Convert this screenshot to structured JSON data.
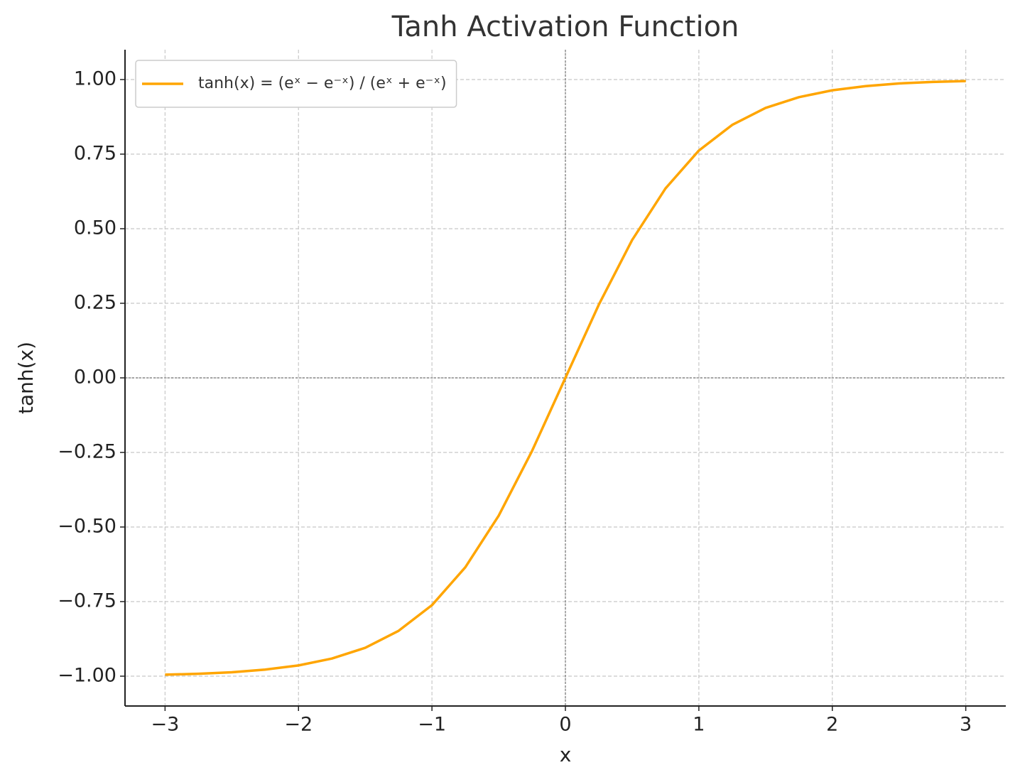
{
  "chart_data": {
    "type": "line",
    "title": "Tanh Activation Function",
    "x_label": "x",
    "y_label": "tanh(x)",
    "x": [
      -3,
      -2.75,
      -2.5,
      -2.25,
      -2,
      -1.75,
      -1.5,
      -1.25,
      -1,
      -0.75,
      -0.5,
      -0.25,
      0,
      0.25,
      0.5,
      0.75,
      1,
      1.25,
      1.5,
      1.75,
      2,
      2.25,
      2.5,
      2.75,
      3
    ],
    "series": [
      {
        "name": "tanh(x) = (eˣ − e⁻ˣ) / (eˣ + e⁻ˣ)",
        "color": "#ffa500",
        "values": [
          -0.995,
          -0.992,
          -0.987,
          -0.978,
          -0.964,
          -0.941,
          -0.905,
          -0.848,
          -0.762,
          -0.635,
          -0.462,
          -0.245,
          0,
          0.245,
          0.462,
          0.635,
          0.762,
          0.848,
          0.905,
          0.941,
          0.964,
          0.978,
          0.987,
          0.992,
          0.995
        ]
      }
    ],
    "xlim": [
      -3.3,
      3.3
    ],
    "ylim": [
      -1.1,
      1.1
    ],
    "xticks": [
      {
        "value": -3,
        "label": "−3"
      },
      {
        "value": -2,
        "label": "−2"
      },
      {
        "value": -1,
        "label": "−1"
      },
      0,
      1,
      2,
      3
    ],
    "yticks": [
      {
        "value": -1,
        "label": "−1.00"
      },
      {
        "value": -0.75,
        "label": "−0.75"
      },
      {
        "value": -0.5,
        "label": "−0.50"
      },
      {
        "value": -0.25,
        "label": "−0.25"
      },
      {
        "value": 0,
        "label": "0.00"
      },
      {
        "value": 0.25,
        "label": "0.25"
      },
      {
        "value": 0.5,
        "label": "0.50"
      },
      {
        "value": 0.75,
        "label": "0.75"
      },
      {
        "value": 1,
        "label": "1.00"
      }
    ],
    "grid": true,
    "zero_lines": true,
    "legend": "upper left"
  }
}
